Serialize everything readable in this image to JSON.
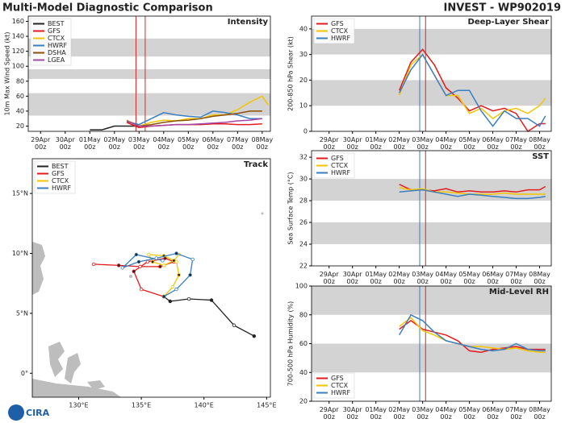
{
  "header": {
    "title": "Multi-Model Diagnostic Comparison",
    "subtitle": "INVEST - WP902019"
  },
  "logo": "CIRA",
  "chart_data": [
    {
      "type": "line",
      "title": "Intensity",
      "ylabel": "10m Max Wind Speed (kt)",
      "legend": "upper left",
      "xlim": [
        "28Apr 12z",
        "08May 08z"
      ],
      "ylim": [
        13,
        167
      ],
      "xticks": [
        "29Apr 00z",
        "30Apr 00z",
        "01May 00z",
        "02May 00z",
        "03May 00z",
        "04May 00z",
        "05May 00z",
        "06May 00z",
        "07May 00z",
        "08May 00z"
      ],
      "yticks": [
        20,
        40,
        60,
        80,
        100,
        120,
        140,
        160
      ],
      "bands": [
        [
          34,
          64
        ],
        [
          83,
          96
        ],
        [
          113,
          137
        ]
      ],
      "band_color": "#d3d3d3",
      "vlines": [
        {
          "x": "02May 21z",
          "color": "#d62728"
        },
        {
          "x": "03May 06z",
          "color": "#d62728"
        }
      ],
      "series": [
        {
          "name": "BEST",
          "color": "#222222",
          "x": [
            "01May 00z",
            "01May 12z",
            "02May 00z",
            "02May 12z",
            "03May 00z"
          ],
          "values": [
            15,
            15,
            20,
            20,
            20
          ]
        },
        {
          "name": "GFS",
          "color": "#e41a1c",
          "x": [
            "02May 12z",
            "03May 00z",
            "03May 12z",
            "04May 00z",
            "04May 12z",
            "05May 00z",
            "05May 12z",
            "06May 00z",
            "06May 12z",
            "07May 00z",
            "07May 12z",
            "08May 00z"
          ],
          "values": [
            25,
            18,
            20,
            21,
            22,
            22,
            22,
            23,
            23,
            22,
            22,
            23
          ]
        },
        {
          "name": "CTCX",
          "color": "#f5c400",
          "x": [
            "02May 12z",
            "03May 00z",
            "03May 12z",
            "04May 00z",
            "04May 12z",
            "05May 00z",
            "05May 12z",
            "06May 00z",
            "06May 12z",
            "07May 00z",
            "07May 12z",
            "08May 00z",
            "08May 06z"
          ],
          "values": [
            28,
            20,
            25,
            28,
            27,
            30,
            30,
            35,
            35,
            42,
            52,
            60,
            48
          ]
        },
        {
          "name": "HWRF",
          "color": "#3a7fc1",
          "x": [
            "02May 12z",
            "03May 00z",
            "03May 12z",
            "04May 00z",
            "04May 12z",
            "05May 00z",
            "05May 12z",
            "06May 00z",
            "06May 12z",
            "07May 00z",
            "07May 12z",
            "08May 00z"
          ],
          "values": [
            26,
            22,
            30,
            38,
            35,
            33,
            32,
            40,
            38,
            35,
            30,
            30
          ]
        },
        {
          "name": "DSHA",
          "color": "#8c510a",
          "x": [
            "02May 12z",
            "03May 00z",
            "03May 12z",
            "04May 00z",
            "04May 12z",
            "05May 00z",
            "05May 12z",
            "06May 00z",
            "06May 12z",
            "07May 00z",
            "07May 12z",
            "08May 00z"
          ],
          "values": [
            27,
            20,
            22,
            25,
            27,
            28,
            30,
            33,
            35,
            37,
            40,
            40
          ]
        },
        {
          "name": "LGEA",
          "color": "#a347a3",
          "x": [
            "02May 12z",
            "03May 00z",
            "03May 12z",
            "04May 00z",
            "04May 12z",
            "05May 00z",
            "05May 12z",
            "06May 00z",
            "06May 12z",
            "07May 00z",
            "07May 12z",
            "08May 00z"
          ],
          "values": [
            27,
            20,
            20,
            21,
            22,
            22,
            23,
            24,
            25,
            27,
            28,
            30
          ]
        }
      ]
    },
    {
      "type": "track",
      "title": "Track",
      "legend": "upper left",
      "xlim": [
        126.3,
        145.3
      ],
      "ylim": [
        -2,
        17.9
      ],
      "xticks": [
        {
          "value": 130,
          "label": "130°E"
        },
        {
          "value": 135,
          "label": "135°E"
        },
        {
          "value": 140,
          "label": "140°E"
        },
        {
          "value": 145,
          "label": "145°E"
        }
      ],
      "yticks": [
        {
          "value": 0,
          "label": "0°"
        },
        {
          "value": 5,
          "label": "5°N"
        },
        {
          "value": 10,
          "label": "10°N"
        },
        {
          "value": 15,
          "label": "15°N"
        }
      ],
      "series": [
        {
          "name": "BEST",
          "color": "#222222",
          "x": [
            144.0,
            142.4,
            140.6,
            138.8,
            137.3,
            136.8
          ],
          "values": [
            3.1,
            4.0,
            6.1,
            6.2,
            6.0,
            6.4
          ]
        },
        {
          "name": "GFS",
          "color": "#e41a1c",
          "x": [
            136.8,
            135.0,
            134.4,
            135.5,
            136.9,
            137.6,
            136.5,
            134.9,
            133.2,
            131.2
          ],
          "values": [
            6.4,
            7.0,
            8.5,
            9.3,
            9.6,
            9.3,
            8.9,
            8.9,
            9.0,
            9.1
          ]
        },
        {
          "name": "CTCX",
          "color": "#f5c400",
          "x": [
            136.8,
            137.5,
            138.0,
            137.8,
            136.8,
            135.6,
            135.9,
            136.8,
            137.6,
            138.0
          ],
          "values": [
            6.4,
            7.2,
            8.2,
            9.3,
            9.8,
            9.9,
            9.3,
            9.0,
            9.4,
            9.9
          ]
        },
        {
          "name": "HWRF",
          "color": "#3a7fc1",
          "x": [
            136.8,
            137.8,
            138.9,
            139.1,
            137.8,
            136.2,
            134.8,
            133.5,
            134.6,
            136.7
          ],
          "values": [
            6.4,
            7.0,
            8.2,
            9.5,
            10.0,
            9.6,
            9.3,
            8.8,
            9.9,
            9.4
          ]
        }
      ]
    },
    {
      "type": "line",
      "title": "Deep-Layer Shear",
      "ylabel": "200-850 hPa Shear (kt)",
      "legend": "upper left",
      "xlim": [
        "28Apr 06z",
        "08May 12z"
      ],
      "ylim": [
        0,
        45
      ],
      "xticks": [
        "29Apr 00z",
        "30Apr 00z",
        "01May 00z",
        "02May 00z",
        "03May 00z",
        "04May 00z",
        "05May 00z",
        "06May 00z",
        "07May 00z",
        "08May 00z"
      ],
      "yticks": [
        0,
        10,
        20,
        30,
        40
      ],
      "bands": [
        [
          10,
          20
        ],
        [
          30,
          40
        ]
      ],
      "band_color": "#d3d3d3",
      "vlines": [
        {
          "x": "02May 21z",
          "color": "#3a7fc1"
        },
        {
          "x": "03May 03z",
          "color": "#d62728"
        }
      ],
      "series": [
        {
          "name": "GFS",
          "color": "#e41a1c",
          "x": [
            "02May 00z",
            "02May 12z",
            "03May 00z",
            "03May 12z",
            "04May 00z",
            "04May 12z",
            "05May 00z",
            "05May 12z",
            "06May 00z",
            "06May 12z",
            "07May 00z",
            "07May 12z",
            "08May 00z",
            "08May 06z"
          ],
          "values": [
            16,
            27,
            32,
            26,
            17,
            13,
            8,
            10,
            8,
            9,
            7,
            0,
            3,
            3
          ]
        },
        {
          "name": "CTCX",
          "color": "#f5c400",
          "x": [
            "02May 00z",
            "02May 12z",
            "03May 00z",
            "03May 12z",
            "04May 00z",
            "04May 12z",
            "05May 00z",
            "05May 12z",
            "06May 00z",
            "06May 12z",
            "07May 00z",
            "07May 12z",
            "08May 00z",
            "08May 06z"
          ],
          "values": [
            14,
            26,
            30,
            22,
            14,
            14,
            7,
            9,
            5,
            8,
            9,
            7,
            10,
            13
          ]
        },
        {
          "name": "HWRF",
          "color": "#3a7fc1",
          "x": [
            "02May 00z",
            "02May 12z",
            "03May 00z",
            "03May 12z",
            "04May 00z",
            "04May 12z",
            "05May 00z",
            "05May 12z",
            "06May 00z",
            "06May 12z",
            "07May 00z",
            "07May 12z",
            "08May 00z",
            "08May 06z"
          ],
          "values": [
            15,
            24,
            30,
            22,
            14,
            16,
            16,
            8,
            2,
            8,
            5,
            5,
            2,
            6
          ]
        }
      ]
    },
    {
      "type": "line",
      "title": "SST",
      "ylabel": "Sea Surface Temp (°C)",
      "legend": "upper left",
      "xlim": [
        "28Apr 06z",
        "08May 12z"
      ],
      "ylim": [
        22,
        32.6
      ],
      "xticks": [
        "29Apr 00z",
        "30Apr 00z",
        "01May 00z",
        "02May 00z",
        "03May 00z",
        "04May 00z",
        "05May 00z",
        "06May 00z",
        "07May 00z",
        "08May 00z"
      ],
      "yticks": [
        22,
        24,
        26,
        28,
        30,
        32
      ],
      "bands": [
        [
          24,
          26
        ],
        [
          28,
          30
        ]
      ],
      "band_color": "#d3d3d3",
      "vlines": [
        {
          "x": "02May 21z",
          "color": "#3a7fc1"
        },
        {
          "x": "03May 03z",
          "color": "#d62728"
        }
      ],
      "series": [
        {
          "name": "GFS",
          "color": "#e41a1c",
          "x": [
            "02May 00z",
            "02May 12z",
            "03May 00z",
            "03May 12z",
            "04May 00z",
            "04May 12z",
            "05May 00z",
            "05May 12z",
            "06May 00z",
            "06May 12z",
            "07May 00z",
            "07May 12z",
            "08May 00z",
            "08May 06z"
          ],
          "values": [
            29.5,
            29.0,
            29.0,
            28.9,
            29.1,
            28.8,
            28.9,
            28.8,
            28.8,
            28.9,
            28.8,
            29.0,
            29.0,
            29.3
          ]
        },
        {
          "name": "CTCX",
          "color": "#f5c400",
          "x": [
            "02May 00z",
            "02May 12z",
            "03May 00z",
            "03May 12z",
            "04May 00z",
            "04May 12z",
            "05May 00z",
            "05May 12z",
            "06May 00z",
            "06May 12z",
            "07May 00z",
            "07May 12z",
            "08May 00z",
            "08May 06z"
          ],
          "values": [
            29.2,
            29.0,
            29.1,
            28.8,
            28.8,
            28.7,
            28.6,
            28.6,
            28.6,
            28.7,
            28.6,
            28.6,
            28.6,
            28.6
          ]
        },
        {
          "name": "HWRF",
          "color": "#3a7fc1",
          "x": [
            "02May 00z",
            "02May 12z",
            "03May 00z",
            "03May 12z",
            "04May 00z",
            "04May 12z",
            "05May 00z",
            "05May 12z",
            "06May 00z",
            "06May 12z",
            "07May 00z",
            "07May 12z",
            "08May 00z",
            "08May 06z"
          ],
          "values": [
            28.8,
            28.9,
            29.0,
            28.8,
            28.6,
            28.4,
            28.6,
            28.5,
            28.4,
            28.3,
            28.2,
            28.2,
            28.3,
            28.4
          ]
        }
      ]
    },
    {
      "type": "line",
      "title": "Mid-Level RH",
      "ylabel": "700-500 hPa Humidity (%)",
      "legend": "lower left",
      "xlim": [
        "28Apr 06z",
        "08May 12z"
      ],
      "ylim": [
        20,
        100
      ],
      "xticks": [
        "29Apr 00z",
        "30Apr 00z",
        "01May 00z",
        "02May 00z",
        "03May 00z",
        "04May 00z",
        "05May 00z",
        "06May 00z",
        "07May 00z",
        "08May 00z"
      ],
      "yticks": [
        20,
        40,
        60,
        80,
        100
      ],
      "bands": [
        [
          40,
          60
        ],
        [
          80,
          100
        ]
      ],
      "band_color": "#d3d3d3",
      "vlines": [
        {
          "x": "02May 21z",
          "color": "#3a7fc1"
        },
        {
          "x": "03May 03z",
          "color": "#d62728"
        }
      ],
      "series": [
        {
          "name": "GFS",
          "color": "#e41a1c",
          "x": [
            "02May 00z",
            "02May 12z",
            "03May 00z",
            "03May 12z",
            "04May 00z",
            "04May 12z",
            "05May 00z",
            "05May 12z",
            "06May 00z",
            "06May 12z",
            "07May 00z",
            "07May 12z",
            "08May 00z",
            "08May 06z"
          ],
          "values": [
            70,
            76,
            70,
            68,
            66,
            62,
            55,
            54,
            56,
            57,
            58,
            56,
            56,
            56
          ]
        },
        {
          "name": "CTCX",
          "color": "#f5c400",
          "x": [
            "02May 00z",
            "02May 12z",
            "03May 00z",
            "03May 12z",
            "04May 00z",
            "04May 12z",
            "05May 00z",
            "05May 12z",
            "06May 00z",
            "06May 12z",
            "07May 00z",
            "07May 12z",
            "08May 00z",
            "08May 06z"
          ],
          "values": [
            72,
            78,
            69,
            66,
            62,
            60,
            58,
            58,
            57,
            56,
            57,
            55,
            54,
            54
          ]
        },
        {
          "name": "HWRF",
          "color": "#3a7fc1",
          "x": [
            "02May 00z",
            "02May 12z",
            "03May 00z",
            "03May 12z",
            "04May 00z",
            "04May 12z",
            "05May 00z",
            "05May 12z",
            "06May 00z",
            "06May 12z",
            "07May 00z",
            "07May 12z",
            "08May 00z",
            "08May 06z"
          ],
          "values": [
            66,
            80,
            76,
            68,
            62,
            60,
            58,
            56,
            55,
            56,
            60,
            56,
            55,
            55
          ]
        }
      ]
    }
  ]
}
